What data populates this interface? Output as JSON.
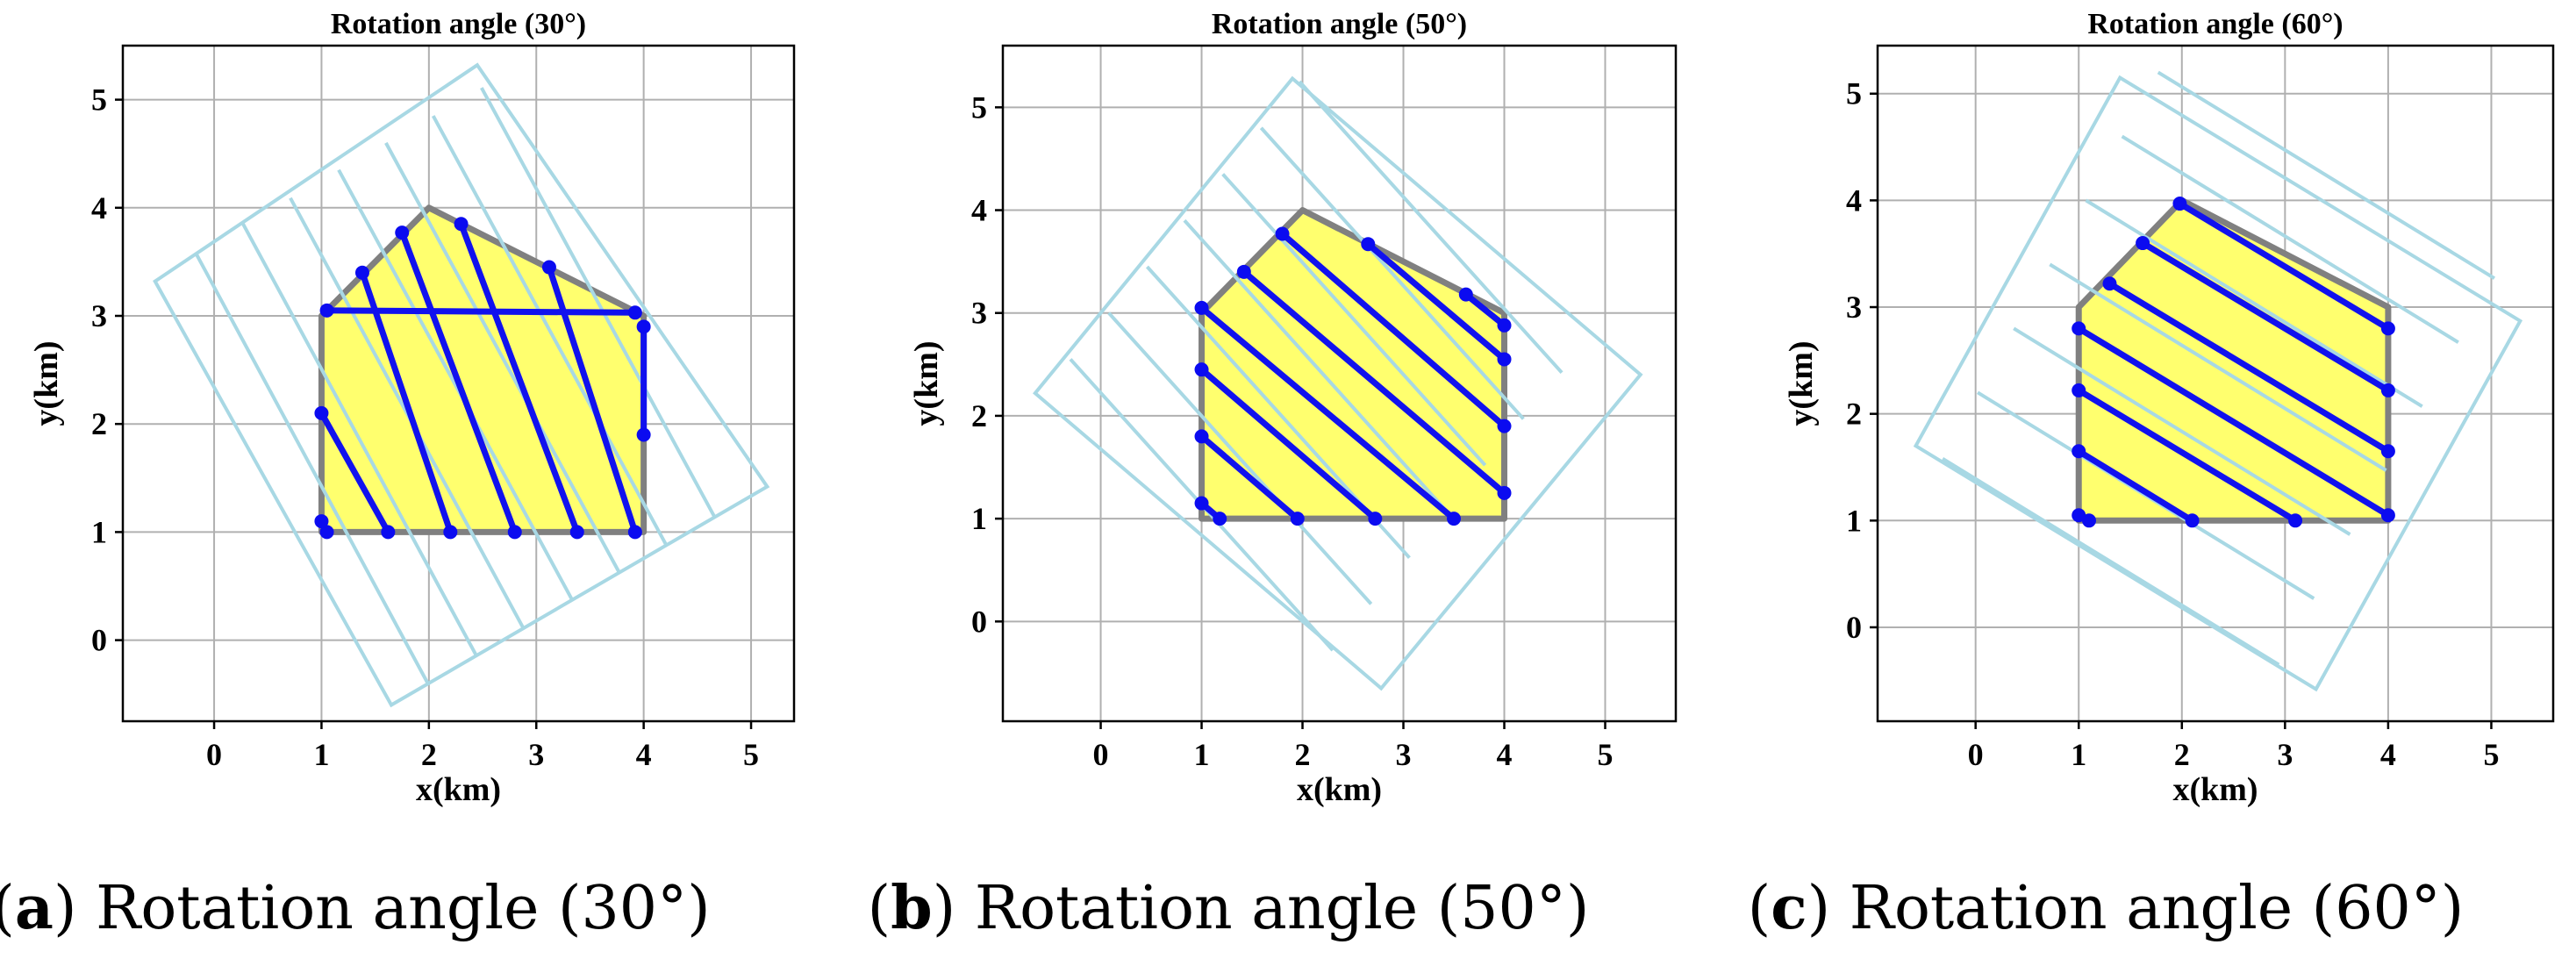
{
  "chart_data": [
    {
      "type": "line",
      "title": "Rotation angle (30°)",
      "xlabel": "x(km)",
      "ylabel": "y(km)",
      "xlim": [
        -0.85,
        5.4
      ],
      "ylim": [
        -0.75,
        5.5
      ],
      "xticks": [
        "0",
        "1",
        "2",
        "3",
        "4",
        "5"
      ],
      "yticks": [
        "0",
        "1",
        "2",
        "3",
        "4",
        "5"
      ],
      "grid": true,
      "caption_letter": "a",
      "caption_text": ") Rotation angle (30°)",
      "region": [
        [
          1,
          1
        ],
        [
          4,
          1
        ],
        [
          4,
          3
        ],
        [
          2,
          4
        ],
        [
          1,
          3
        ]
      ],
      "rotated_grid": {
        "corners": [
          [
            1.65,
            -0.6
          ],
          [
            5.15,
            1.42
          ],
          [
            2.45,
            5.32
          ],
          [
            -0.55,
            3.32
          ]
        ],
        "lines": [
          [
            [
              1.99,
              -0.4
            ],
            [
              -0.17,
              3.58
            ]
          ],
          [
            [
              2.44,
              -0.14
            ],
            [
              0.27,
              3.85
            ]
          ],
          [
            [
              2.88,
              0.11
            ],
            [
              0.71,
              4.09
            ]
          ],
          [
            [
              3.33,
              0.38
            ],
            [
              1.16,
              4.35
            ]
          ],
          [
            [
              3.77,
              0.63
            ],
            [
              1.6,
              4.6
            ]
          ],
          [
            [
              4.21,
              0.88
            ],
            [
              2.04,
              4.85
            ]
          ],
          [
            [
              4.66,
              1.14
            ],
            [
              2.49,
              5.11
            ]
          ]
        ]
      },
      "path": [
        [
          1.05,
          1.0
        ],
        [
          1.0,
          1.1
        ],
        [
          1.0,
          2.1
        ],
        [
          1.62,
          1.0
        ],
        [
          2.2,
          1.0
        ],
        [
          1.38,
          3.4
        ],
        [
          1.75,
          3.77
        ],
        [
          2.8,
          1.0
        ],
        [
          3.38,
          1.0
        ],
        [
          2.3,
          3.85
        ],
        [
          3.12,
          3.45
        ],
        [
          3.92,
          1.0
        ],
        [
          4.0,
          1.9
        ],
        [
          4.0,
          2.9
        ],
        [
          3.92,
          3.03
        ],
        [
          1.05,
          3.05
        ]
      ]
    },
    {
      "type": "line",
      "title": "Rotation angle (50°)",
      "xlabel": "x(km)",
      "ylabel": "y(km)",
      "xlim": [
        -0.97,
        5.7
      ],
      "ylim": [
        -0.97,
        5.6
      ],
      "xticks": [
        "0",
        "1",
        "2",
        "3",
        "4",
        "5"
      ],
      "yticks": [
        "0",
        "1",
        "2",
        "3",
        "4",
        "5"
      ],
      "grid": true,
      "caption_letter": "b",
      "caption_text": ") Rotation angle (50°)",
      "region": [
        [
          1,
          1
        ],
        [
          4,
          1
        ],
        [
          4,
          3
        ],
        [
          2,
          4
        ],
        [
          1,
          3
        ]
      ],
      "rotated_grid": {
        "corners": [
          [
            2.78,
            -0.65
          ],
          [
            5.35,
            2.4
          ],
          [
            1.9,
            5.28
          ],
          [
            -0.65,
            2.22
          ]
        ],
        "lines": [
          [
            [
              2.3,
              -0.28
            ],
            [
              -0.3,
              2.55
            ]
          ],
          [
            [
              2.68,
              0.17
            ],
            [
              0.08,
              3.0
            ]
          ],
          [
            [
              3.06,
              0.62
            ],
            [
              0.46,
              3.45
            ]
          ],
          [
            [
              3.43,
              1.07
            ],
            [
              0.83,
              3.9
            ]
          ],
          [
            [
              3.81,
              1.52
            ],
            [
              1.21,
              4.35
            ]
          ],
          [
            [
              4.19,
              1.97
            ],
            [
              1.59,
              4.8
            ]
          ],
          [
            [
              4.57,
              2.42
            ],
            [
              1.97,
              5.25
            ]
          ]
        ]
      },
      "path": [
        [
          1.18,
          1.0
        ],
        [
          1.0,
          1.15
        ],
        [
          1.0,
          1.8
        ],
        [
          1.95,
          1.0
        ],
        [
          2.72,
          1.0
        ],
        [
          1.0,
          2.45
        ],
        [
          1.0,
          3.05
        ],
        [
          3.5,
          1.0
        ],
        [
          4.0,
          1.25
        ],
        [
          1.42,
          3.4
        ],
        [
          1.8,
          3.77
        ],
        [
          4.0,
          1.9
        ],
        [
          4.0,
          2.55
        ],
        [
          2.65,
          3.67
        ],
        [
          3.62,
          3.18
        ],
        [
          4.0,
          2.88
        ]
      ]
    },
    {
      "type": "line",
      "title": "Rotation angle (60°)",
      "xlabel": "x(km)",
      "ylabel": "y(km)",
      "xlim": [
        -0.95,
        5.6
      ],
      "ylim": [
        -0.88,
        5.45
      ],
      "xticks": [
        "0",
        "1",
        "2",
        "3",
        "4",
        "5"
      ],
      "yticks": [
        "0",
        "1",
        "2",
        "3",
        "4",
        "5"
      ],
      "grid": true,
      "caption_letter": "c",
      "caption_text": ") Rotation angle (60°)",
      "region": [
        [
          1,
          1
        ],
        [
          4,
          1
        ],
        [
          4,
          3
        ],
        [
          2,
          4
        ],
        [
          1,
          3
        ]
      ],
      "rotated_grid": {
        "corners": [
          [
            3.3,
            -0.58
          ],
          [
            5.28,
            2.87
          ],
          [
            1.4,
            5.15
          ],
          [
            -0.58,
            1.7
          ]
        ],
        "lines": [
          [
            [
              2.94,
              -0.35
            ],
            [
              -0.32,
              1.58
            ]
          ],
          [
            [
              3.28,
              0.27
            ],
            [
              0.02,
              2.2
            ]
          ],
          [
            [
              3.63,
              0.87
            ],
            [
              0.37,
              2.8
            ]
          ],
          [
            [
              3.98,
              1.47
            ],
            [
              0.72,
              3.4
            ]
          ],
          [
            [
              4.33,
              2.07
            ],
            [
              1.07,
              4.0
            ]
          ],
          [
            [
              4.68,
              2.67
            ],
            [
              1.42,
              4.6
            ]
          ],
          [
            [
              5.03,
              3.27
            ],
            [
              1.77,
              5.2
            ]
          ]
        ]
      },
      "path": [
        [
          1.1,
          1.0
        ],
        [
          1.0,
          1.05
        ],
        [
          1.0,
          1.65
        ],
        [
          2.1,
          1.0
        ],
        [
          3.1,
          1.0
        ],
        [
          1.0,
          2.22
        ],
        [
          1.0,
          2.8
        ],
        [
          4.0,
          1.05
        ],
        [
          4.0,
          1.65
        ],
        [
          1.3,
          3.22
        ],
        [
          1.62,
          3.6
        ],
        [
          4.0,
          2.22
        ],
        [
          4.0,
          2.8
        ],
        [
          1.98,
          3.97
        ]
      ]
    }
  ]
}
